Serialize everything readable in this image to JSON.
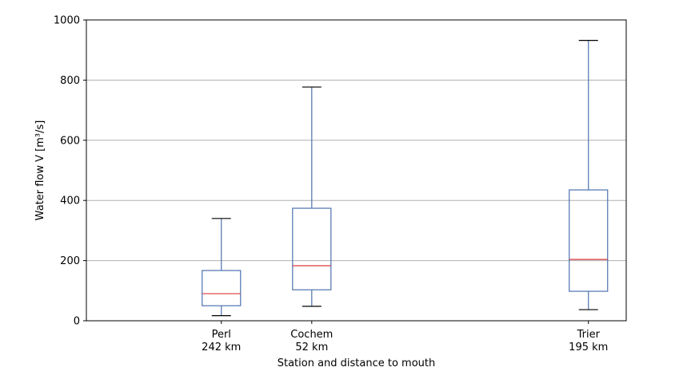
{
  "chart_data": {
    "type": "boxplot",
    "title": "",
    "xlabel": "Station and distance to mouth",
    "ylabel": "Water flow V [m³/s]",
    "ylim": [
      0,
      1000
    ],
    "yticks": [
      0,
      200,
      400,
      600,
      800,
      1000
    ],
    "grid": "horizontal",
    "xlim": [
      -100,
      300
    ],
    "boxes": [
      {
        "category": "Perl",
        "distance": "242 km",
        "x": 0,
        "whisker_low": 17,
        "q1": 50,
        "median": 90,
        "q3": 167,
        "whisker_high": 340
      },
      {
        "category": "Cochem",
        "distance": "52 km",
        "x": 67,
        "whisker_low": 48,
        "q1": 103,
        "median": 183,
        "q3": 374,
        "whisker_high": 777
      },
      {
        "category": "Trier",
        "distance": "195 km",
        "x": 272,
        "whisker_low": 37,
        "q1": 98,
        "median": 204,
        "q3": 435,
        "whisker_high": 932
      }
    ],
    "colors": {
      "box": "#4c72b0",
      "median": "#d9383a",
      "whisker_cap": "#000000",
      "grid": "#b0b0b0"
    }
  }
}
